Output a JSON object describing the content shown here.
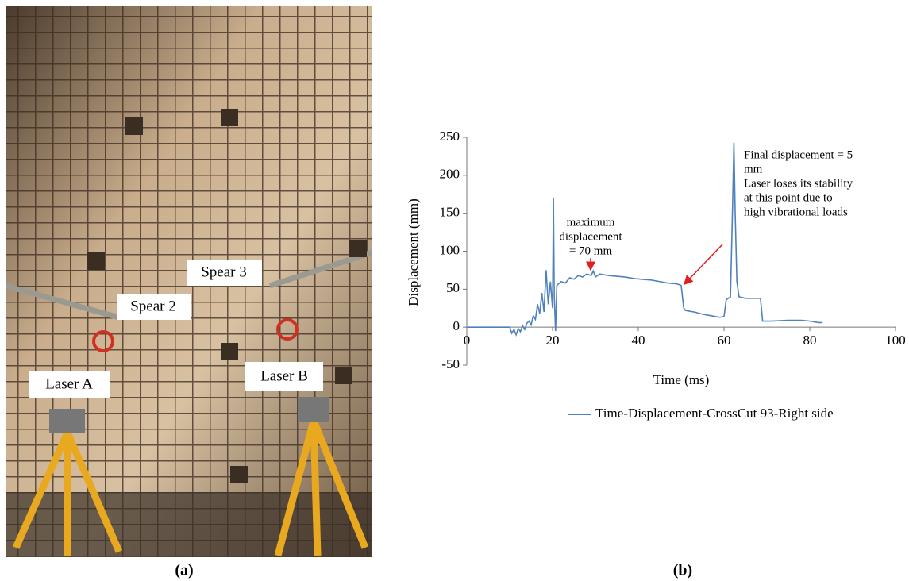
{
  "photo": {
    "labels": [
      "Spear 3",
      "Spear 2",
      "Laser A",
      "Laser B"
    ],
    "caption": "(a)"
  },
  "chart_data": {
    "type": "line",
    "caption": "(b)",
    "x_label": "Time (ms)",
    "y_label": "Displacement (mm)",
    "xlim": [
      0,
      100
    ],
    "xticks": [
      0,
      20,
      40,
      60,
      80,
      100
    ],
    "ylim": [
      -50,
      250
    ],
    "yticks": [
      -50,
      0,
      50,
      100,
      150,
      200,
      250
    ],
    "grid": false,
    "legend": "bottom",
    "annotations": [
      {
        "lines": [
          "maximum",
          "displacement",
          "= 70 mm"
        ]
      },
      {
        "lines": [
          "Final displacement = 5",
          "mm",
          "Laser loses its stability",
          "at this point due to",
          "high vibrational loads"
        ]
      }
    ],
    "x": [
      0,
      5,
      10,
      10.5,
      11,
      11.5,
      12,
      12.5,
      13,
      13.5,
      14,
      14.5,
      15,
      15.5,
      16,
      16.5,
      17,
      17.5,
      18,
      18.5,
      19,
      19.5,
      20,
      20.2,
      20.4,
      20.7,
      21,
      22,
      23,
      24,
      25,
      26,
      27,
      28,
      29,
      29.5,
      30,
      31,
      32,
      33,
      35,
      37,
      39,
      41,
      43,
      45,
      47,
      49,
      50,
      50.3,
      50.6,
      51,
      53,
      55,
      57,
      59,
      60,
      60.5,
      61,
      61.5,
      62,
      62.3,
      62.6,
      63,
      63.5,
      65,
      67,
      68.5,
      69,
      71,
      75,
      78,
      80,
      82,
      83
    ],
    "series": [
      {
        "name": "Time-Displacement-CrossCut 93-Right side",
        "color": "#4f81bd",
        "values": [
          0,
          0,
          0,
          -8,
          -3,
          -10,
          -2,
          -6,
          2,
          -3,
          5,
          8,
          3,
          15,
          10,
          30,
          18,
          45,
          20,
          75,
          30,
          60,
          25,
          170,
          40,
          -5,
          55,
          60,
          58,
          65,
          63,
          68,
          66,
          70,
          68,
          74,
          66,
          70,
          69,
          68,
          67,
          66,
          64,
          63,
          62,
          60,
          58,
          57,
          55,
          40,
          25,
          22,
          20,
          17,
          15,
          13,
          14,
          36,
          38,
          40,
          160,
          243,
          150,
          60,
          40,
          38,
          38,
          38,
          8,
          8,
          9,
          9,
          8,
          6,
          6
        ]
      }
    ]
  }
}
